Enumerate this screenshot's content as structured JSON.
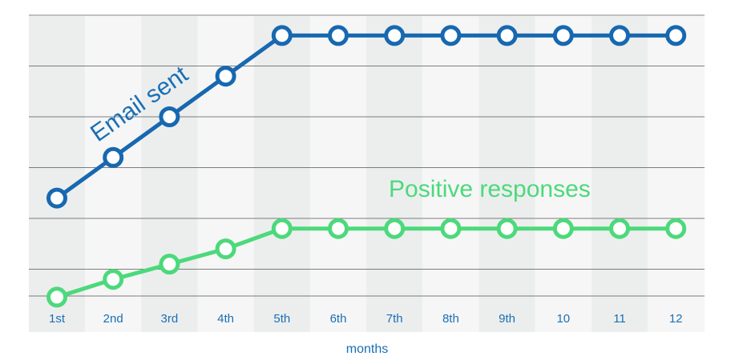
{
  "chart_data": {
    "type": "line",
    "xlabel": "months",
    "ylabel": "",
    "categories": [
      "1st",
      "2nd",
      "3rd",
      "4th",
      "5th",
      "6th",
      "7th",
      "8th",
      "9th",
      "10",
      "11",
      "12"
    ],
    "ylim": [
      0,
      6
    ],
    "grid": true,
    "series": [
      {
        "name": "Email sent",
        "color": "#1768b0",
        "values": [
          2.4,
          3.2,
          4.0,
          4.8,
          5.6,
          5.6,
          5.6,
          5.6,
          5.6,
          5.6,
          5.6,
          5.6
        ]
      },
      {
        "name": "Positive responses",
        "color": "#4cd97b",
        "values": [
          0.45,
          0.8,
          1.1,
          1.4,
          1.8,
          1.8,
          1.8,
          1.8,
          1.8,
          1.8,
          1.8,
          1.8
        ]
      }
    ],
    "band_colors": [
      "#eceeee",
      "#f6f6f6"
    ],
    "grid_color": "#555555"
  }
}
